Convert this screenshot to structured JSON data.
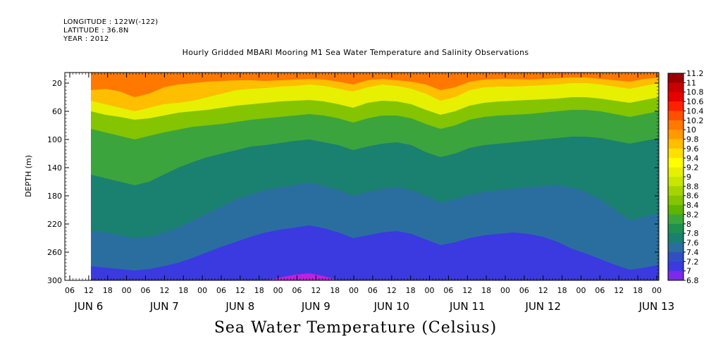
{
  "meta": {
    "longitude": "LONGITUDE : 122W(-122)",
    "latitude": "LATITUDE : 36.8N",
    "year": "YEAR : 2012"
  },
  "chart_data": {
    "type": "heatmap",
    "title": "Hourly Gridded MBARI Mooring M1 Sea Water Temperature and Salinity Observations",
    "subtitle": "Sea Water Temperature (Celsius)",
    "ylabel": "DEPTH (m)",
    "xlabel": "",
    "y_ticks": [
      "20",
      "60",
      "100",
      "140",
      "180",
      "220",
      "260",
      "300"
    ],
    "ylim": [
      300,
      5
    ],
    "x_hour_ticks": [
      "06",
      "12",
      "18",
      "00",
      "06",
      "12",
      "18",
      "00",
      "06",
      "12",
      "18",
      "00",
      "06",
      "12",
      "18",
      "00",
      "06",
      "12",
      "18",
      "00",
      "06",
      "12",
      "18",
      "00",
      "06",
      "12",
      "18",
      "00",
      "06",
      "12",
      "18",
      "00"
    ],
    "x_day_labels": [
      "JUN  6",
      "JUN  7",
      "JUN  8",
      "JUN  9",
      "JUN 10",
      "JUN 11",
      "JUN 12",
      "JUN 13"
    ],
    "data_start": "JUN 6 12",
    "colorbar_levels": [
      "11.2",
      "11",
      "10.8",
      "10.6",
      "10.4",
      "10.2",
      "10",
      "9.8",
      "9.6",
      "9.4",
      "9.2",
      "9",
      "8.8",
      "8.6",
      "8.4",
      "8.2",
      "8",
      "7.8",
      "7.6",
      "7.4",
      "7.2",
      "7",
      "6.8"
    ],
    "colorbar_colors": [
      "#9b0000",
      "#c80000",
      "#e60000",
      "#ff2000",
      "#ff5000",
      "#ff7800",
      "#ff9b00",
      "#ffbe00",
      "#ffe000",
      "#ffff00",
      "#e6f000",
      "#c8e600",
      "#a6d400",
      "#84c400",
      "#5fb400",
      "#3ca43c",
      "#1e9050",
      "#1a8070",
      "#2a6ea0",
      "#3050c0",
      "#3a3ae0",
      "#7a2ae8",
      "#c020e0"
    ],
    "depth_isotherms": [
      {
        "value": "10.2",
        "depths": [
          30,
          28,
          32,
          40,
          35,
          26,
          22,
          20,
          18,
          17,
          16,
          16,
          17,
          16,
          15,
          14,
          15,
          18,
          22,
          16,
          14,
          16,
          18,
          22,
          30,
          26,
          18,
          15,
          14,
          14,
          15,
          14,
          13,
          12,
          12,
          14,
          16,
          18,
          14,
          12
        ]
      },
      {
        "value": "9.8",
        "depths": [
          45,
          50,
          55,
          60,
          55,
          50,
          48,
          45,
          40,
          35,
          30,
          28,
          27,
          25,
          24,
          22,
          24,
          28,
          32,
          26,
          22,
          24,
          28,
          35,
          45,
          40,
          30,
          26,
          25,
          25,
          24,
          23,
          22,
          20,
          20,
          22,
          25,
          28,
          24,
          20
        ]
      },
      {
        "value": "9.2",
        "depths": [
          60,
          65,
          68,
          72,
          70,
          66,
          62,
          60,
          58,
          55,
          52,
          50,
          48,
          46,
          45,
          44,
          46,
          50,
          55,
          48,
          45,
          46,
          50,
          58,
          65,
          60,
          52,
          48,
          46,
          45,
          44,
          43,
          42,
          40,
          40,
          42,
          45,
          48,
          44,
          40
        ]
      },
      {
        "value": "8.6",
        "depths": [
          85,
          90,
          95,
          100,
          95,
          90,
          86,
          82,
          80,
          78,
          75,
          72,
          70,
          68,
          66,
          64,
          66,
          70,
          76,
          70,
          66,
          66,
          70,
          78,
          85,
          80,
          72,
          68,
          66,
          65,
          64,
          62,
          60,
          58,
          58,
          60,
          64,
          68,
          64,
          60
        ]
      },
      {
        "value": "8.0",
        "depths": [
          150,
          155,
          160,
          165,
          160,
          150,
          140,
          132,
          125,
          120,
          115,
          110,
          108,
          105,
          102,
          100,
          104,
          108,
          115,
          110,
          106,
          104,
          108,
          118,
          125,
          120,
          112,
          108,
          106,
          104,
          102,
          100,
          98,
          96,
          96,
          98,
          102,
          106,
          102,
          98
        ]
      },
      {
        "value": "7.6",
        "depths": [
          230,
          232,
          236,
          240,
          238,
          232,
          225,
          215,
          205,
          195,
          185,
          178,
          172,
          168,
          165,
          162,
          166,
          172,
          180,
          175,
          170,
          168,
          172,
          180,
          190,
          185,
          178,
          175,
          172,
          170,
          168,
          166,
          165,
          168,
          175,
          185,
          200,
          215,
          210,
          205
        ]
      },
      {
        "value": "7.2",
        "depths": [
          280,
          282,
          284,
          286,
          284,
          280,
          275,
          268,
          260,
          252,
          245,
          238,
          232,
          228,
          225,
          222,
          226,
          232,
          240,
          236,
          232,
          230,
          234,
          242,
          250,
          246,
          240,
          236,
          234,
          232,
          234,
          238,
          245,
          255,
          262,
          270,
          278,
          285,
          282,
          278
        ]
      },
      {
        "value": "6.8",
        "depths": [
          305,
          305,
          305,
          305,
          305,
          305,
          305,
          305,
          305,
          305,
          305,
          305,
          300,
          296,
          292,
          290,
          294,
          300,
          305,
          305,
          305,
          305,
          305,
          305,
          305,
          305,
          305,
          305,
          305,
          305,
          305,
          305,
          305,
          305,
          305,
          305,
          305,
          305,
          305,
          305
        ]
      }
    ]
  }
}
